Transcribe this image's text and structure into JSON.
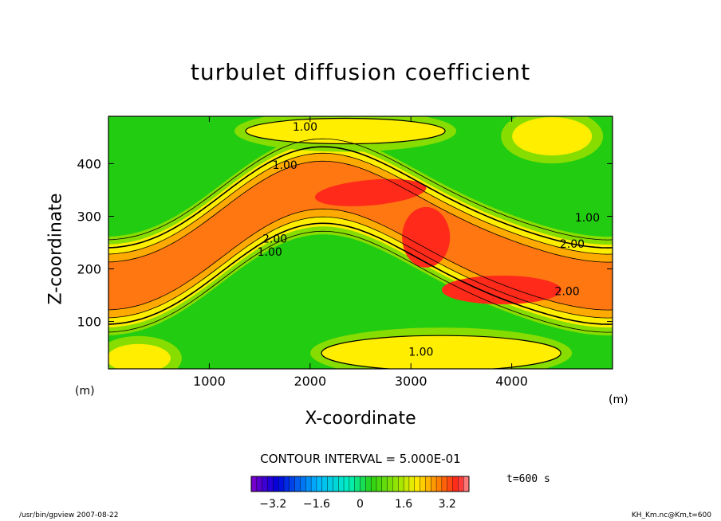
{
  "chart_data": {
    "type": "heatmap",
    "title": "turbulet diffusion coefficient",
    "xlabel": "X-coordinate",
    "ylabel": "Z-coordinate",
    "x_unit": "(m)",
    "z_unit": "(m)",
    "xlim": [
      0,
      5000
    ],
    "ylim": [
      10,
      490
    ],
    "x_ticks": [
      1000,
      2000,
      3000,
      4000
    ],
    "y_ticks": [
      100,
      200,
      300,
      400
    ],
    "contour_interval_text": "CONTOUR INTERVAL = 5.000E-01",
    "contour_labels": [
      "1.00",
      "2.00"
    ],
    "colorbar": {
      "range": [
        -4,
        4
      ],
      "ticks": [
        "-3.2",
        "-1.6",
        "0",
        "1.6",
        "3.2"
      ]
    },
    "time_label": "t=600 s",
    "colors": {
      "background_field": "#22cc11",
      "level_low": "#88dd00",
      "level_mid": "#ffee00",
      "level_high": "#ff7711",
      "level_max": "#ff2a1a"
    }
  },
  "footer": {
    "left": "/usr/bin/gpview  2007-08-22",
    "right": "KH_Km.nc@Km,t=600"
  }
}
